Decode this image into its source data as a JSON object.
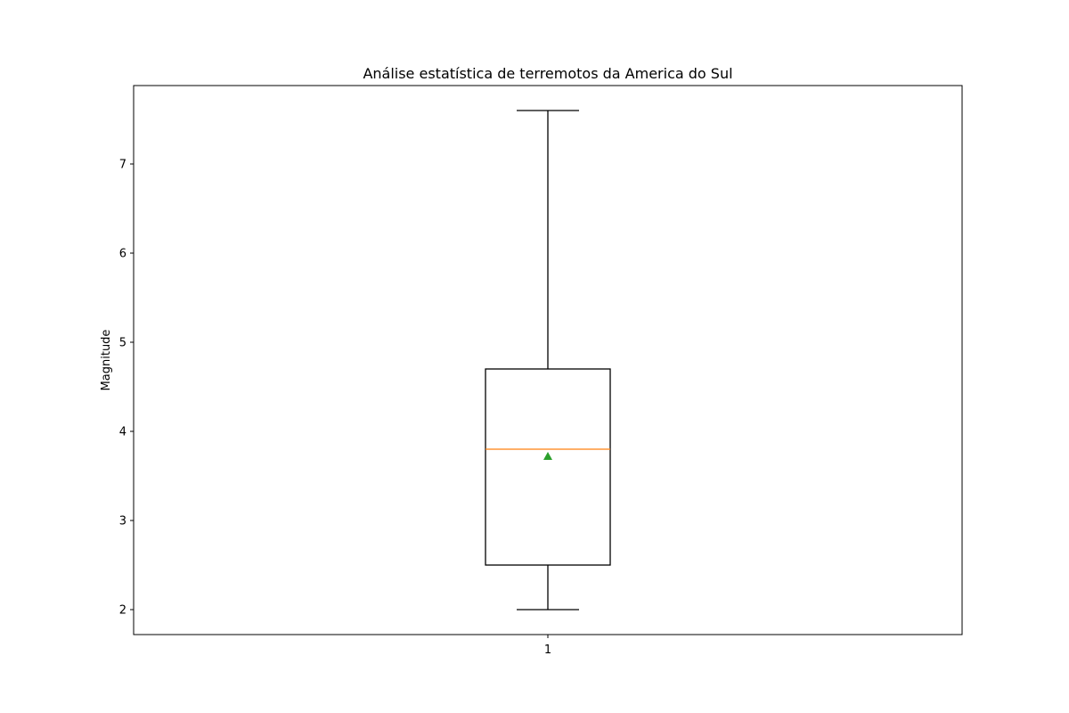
{
  "chart_data": {
    "type": "box",
    "title": "Análise estatística de terremotos da America do Sul",
    "xlabel": "",
    "ylabel": "Magnitude",
    "categories": [
      "1"
    ],
    "ylim": [
      1.72,
      7.88
    ],
    "yticks": [
      2,
      3,
      4,
      5,
      6,
      7
    ],
    "boxes": [
      {
        "category": "1",
        "whisker_low": 2.0,
        "q1": 2.5,
        "median": 3.8,
        "q3": 4.7,
        "whisker_high": 7.6,
        "mean": 3.72
      }
    ],
    "grid": false,
    "colors": {
      "box": "#000000",
      "median": "#ff7f0e",
      "mean": "#2ca02c"
    }
  }
}
